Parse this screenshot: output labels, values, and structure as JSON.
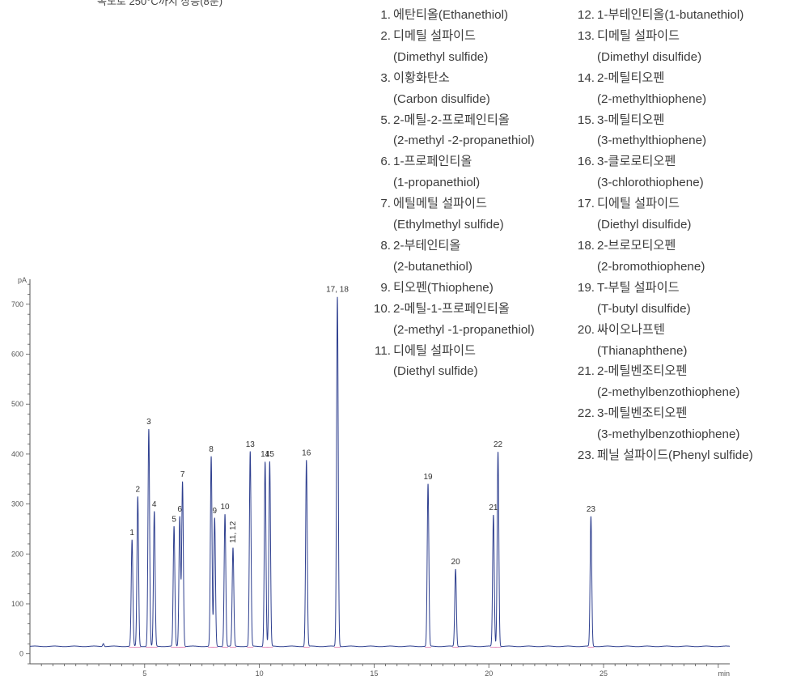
{
  "top_note": "속도로 250°C까지 상승(8분)",
  "legend": {
    "col1": [
      {
        "num": "1.",
        "ko": "에탄티올(Ethanethiol)",
        "en": ""
      },
      {
        "num": "2.",
        "ko": "디메틸 설파이드",
        "en": "(Dimethyl sulfide)"
      },
      {
        "num": "3.",
        "ko": "이황화탄소",
        "en": "(Carbon disulfide)"
      },
      {
        "num": "5.",
        "ko": "2-메틸-2-프로페인티올",
        "en": "(2-methyl -2-propanethiol)"
      },
      {
        "num": "6.",
        "ko": "1-프로페인티올",
        "en": "(1-propanethiol)"
      },
      {
        "num": "7.",
        "ko": "에틸메틸 설파이드",
        "en": "(Ethylmethyl sulfide)"
      },
      {
        "num": "8.",
        "ko": "2-부테인티올",
        "en": "(2-butanethiol)"
      },
      {
        "num": "9.",
        "ko": "티오펜(Thiophene)",
        "en": ""
      },
      {
        "num": "10.",
        "ko": "2-메틸-1-프로페인티올",
        "en": "(2-methyl -1-propanethiol)"
      },
      {
        "num": "11.",
        "ko": "디에틸 설파이드",
        "en": "(Diethyl sulfide)"
      }
    ],
    "col2": [
      {
        "num": "12.",
        "ko": "1-부테인티올(1-butanethiol)",
        "en": ""
      },
      {
        "num": "13.",
        "ko": "디메틸 설파이드",
        "en": "(Dimethyl disulfide)"
      },
      {
        "num": "14.",
        "ko": "2-메틸티오펜",
        "en": "(2-methylthiophene)"
      },
      {
        "num": "15.",
        "ko": "3-메틸티오펜",
        "en": "(3-methylthiophene)"
      },
      {
        "num": "16.",
        "ko": "3-클로로티오펜",
        "en": "(3-chlorothiophene)"
      },
      {
        "num": "17.",
        "ko": "디에틸 설파이드",
        "en": "(Diethyl disulfide)"
      },
      {
        "num": "18.",
        "ko": "2-브로모티오펜",
        "en": "(2-bromothiophene)"
      },
      {
        "num": "19.",
        "ko": "T-부틸 설파이드",
        "en": "(T-butyl disulfide)"
      },
      {
        "num": "20.",
        "ko": "싸이오나프텐",
        "en": "(Thianaphthene)"
      },
      {
        "num": "21.",
        "ko": "2-메틸벤조티오펜",
        "en": "(2-methylbenzothiophene)"
      },
      {
        "num": "22.",
        "ko": "3-메틸벤조티오펜",
        "en": "(3-methylbenzothiophene)"
      },
      {
        "num": "23.",
        "ko": "페닐 설파이드(Phenyl sulfide)",
        "en": ""
      }
    ]
  },
  "chart_data": {
    "type": "line",
    "ylabel": "pA",
    "xlabel": "min",
    "xlim": [
      0,
      30.5
    ],
    "ylim": [
      -20,
      750
    ],
    "x_ticks": [
      5,
      10,
      15,
      20,
      25
    ],
    "y_ticks": [
      0,
      100,
      200,
      300,
      400,
      500,
      600,
      700
    ],
    "baseline": 15,
    "series_color": "#2e3f8f",
    "peaks": [
      {
        "label": "1",
        "x": 4.45,
        "y": 228
      },
      {
        "label": "2",
        "x": 4.7,
        "y": 315
      },
      {
        "label": "3",
        "x": 5.18,
        "y": 450
      },
      {
        "label": "4",
        "x": 5.42,
        "y": 285
      },
      {
        "label": "5",
        "x": 6.28,
        "y": 255
      },
      {
        "label": "6",
        "x": 6.53,
        "y": 275
      },
      {
        "label": "7",
        "x": 6.65,
        "y": 345
      },
      {
        "label": "8",
        "x": 7.9,
        "y": 395
      },
      {
        "label": "9",
        "x": 8.05,
        "y": 272
      },
      {
        "label": "10",
        "x": 8.5,
        "y": 280
      },
      {
        "label": "11, 12",
        "x": 8.85,
        "y": 212
      },
      {
        "label": "13",
        "x": 9.6,
        "y": 405
      },
      {
        "label": "14",
        "x": 10.25,
        "y": 385
      },
      {
        "label": "15",
        "x": 10.45,
        "y": 385
      },
      {
        "label": "16",
        "x": 12.05,
        "y": 388
      },
      {
        "label": "17, 18",
        "x": 13.4,
        "y": 715
      },
      {
        "label": "19",
        "x": 17.35,
        "y": 340
      },
      {
        "label": "20",
        "x": 18.55,
        "y": 170
      },
      {
        "label": "21",
        "x": 20.2,
        "y": 278
      },
      {
        "label": "22",
        "x": 20.4,
        "y": 405
      },
      {
        "label": "23",
        "x": 24.45,
        "y": 275
      }
    ]
  }
}
